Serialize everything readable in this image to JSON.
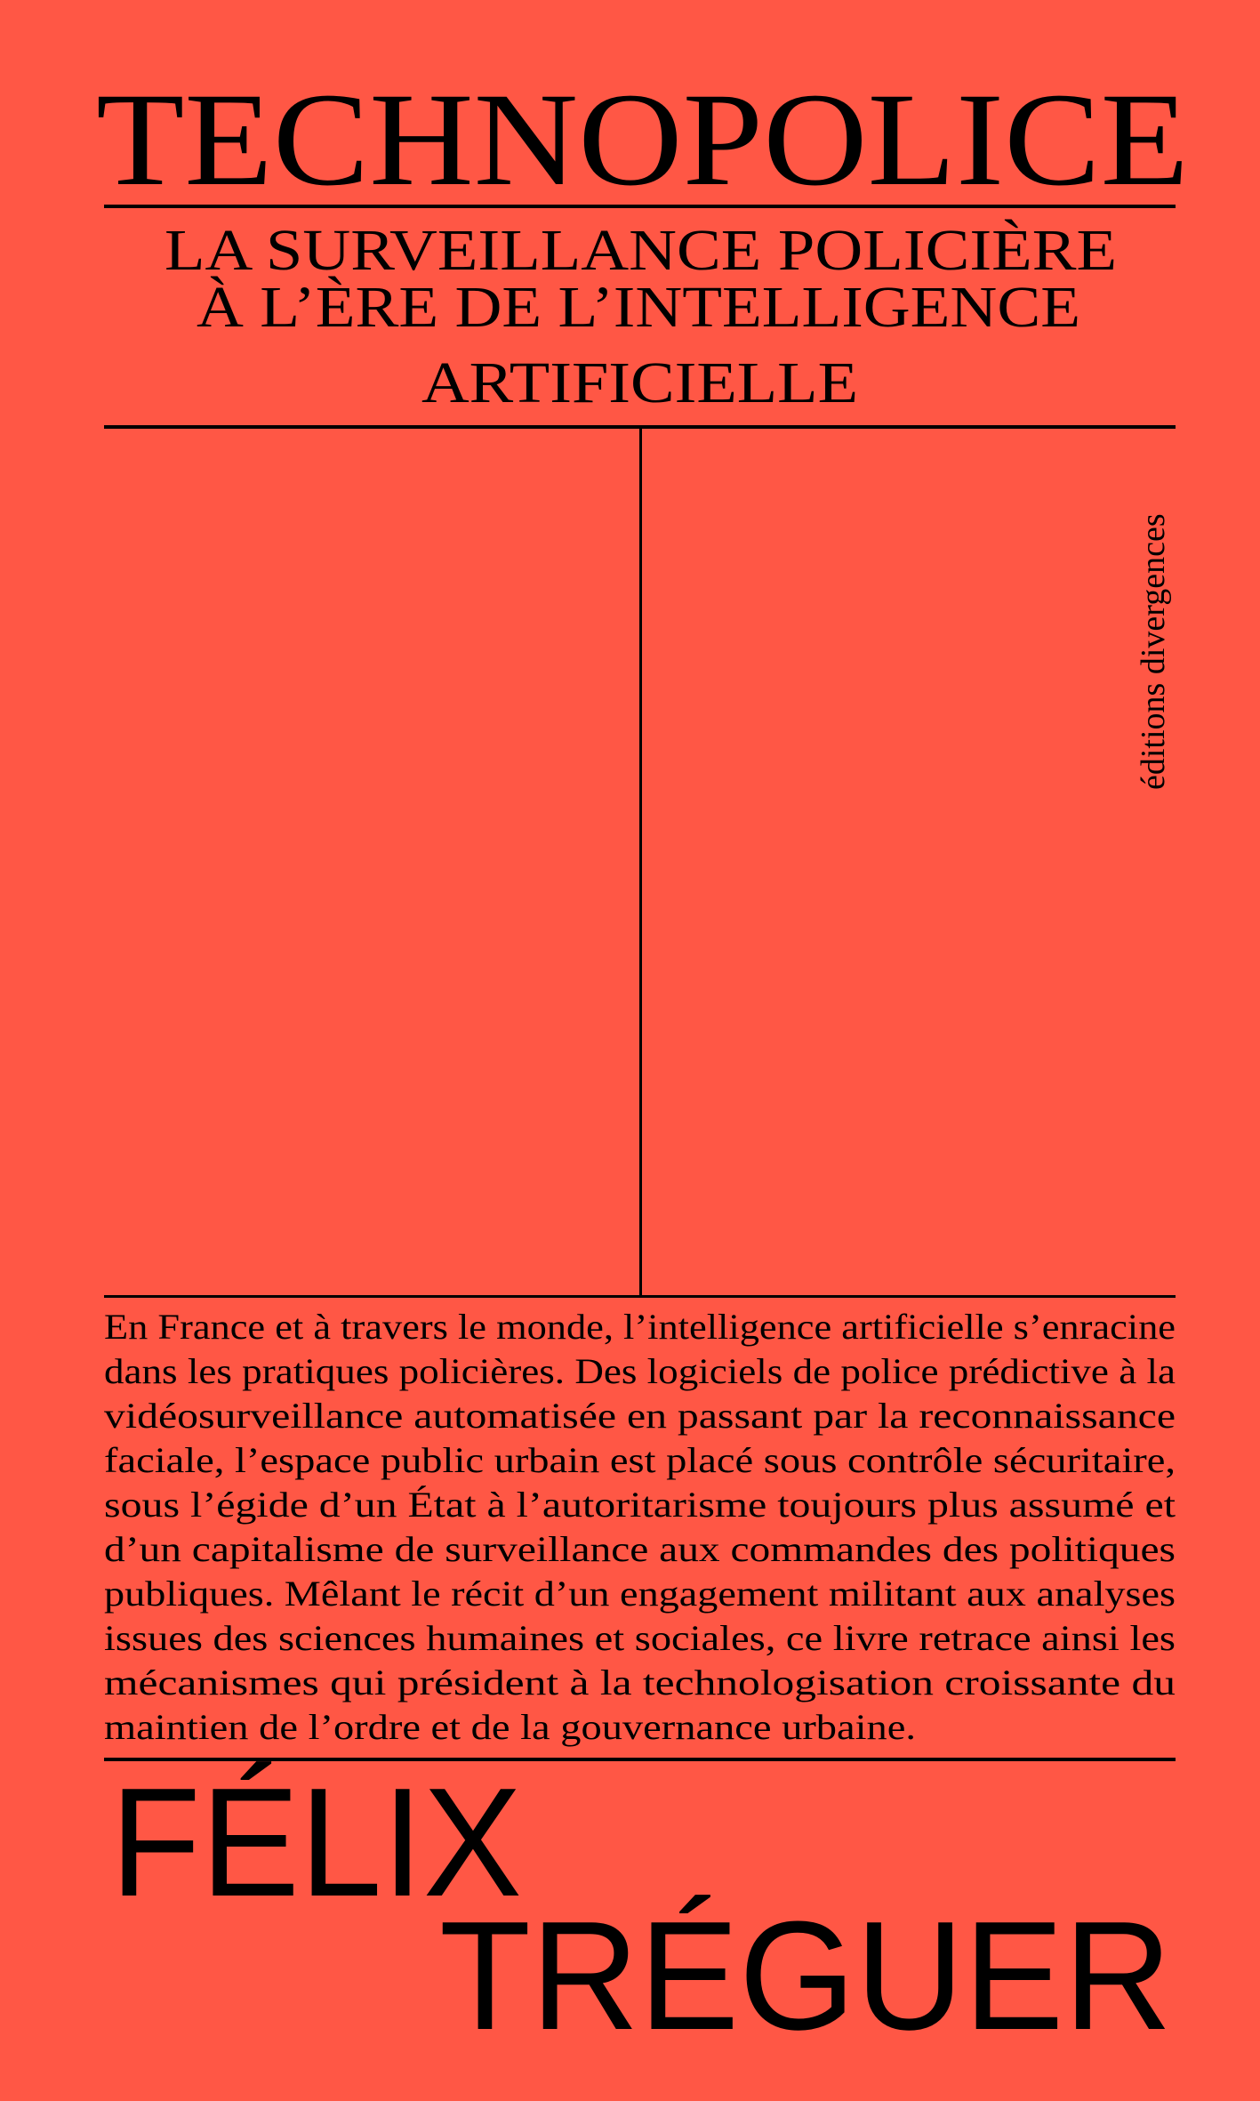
{
  "cover": {
    "background_color": "#FF5745",
    "title": "TECHNOPOLICE",
    "subtitle_lines": [
      "LA SURVEILLANCE POLICIÈRE",
      "À L’ÈRE DE L’INTELLIGENCE",
      "ARTIFICIELLE"
    ],
    "publisher": "éditions divergences",
    "blurb_lines": [
      "En France et à travers le monde, l’intelligence artificielle s’enracine",
      "dans les pratiques policières. Des logiciels de police prédictive à la",
      "vidéosurveillance automatisée en passant par la reconnaissance",
      "faciale, l’espace public urbain est placé sous contrôle sécuritaire,",
      "sous l’égide d’un État à l’autoritarisme toujours plus assumé et",
      "d’un capitalisme de surveillance aux commandes des politiques",
      "publiques. Mêlant le récit d’un engagement militant aux analyses",
      "issues des sciences humaines et sociales, ce livre retrace ainsi les",
      "mécanismes qui président à la technologisation croissante du",
      "maintien de l’ordre et de la gouvernance urbaine."
    ],
    "author_first": "FÉLIX",
    "author_last": "TRÉGUER"
  }
}
